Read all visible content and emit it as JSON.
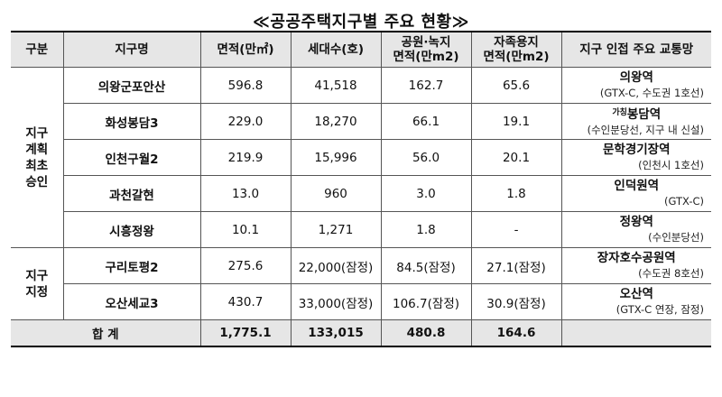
{
  "title": "≪공공주택지구별 주요 현황≫",
  "headers": {
    "group": "구분",
    "district": "지구명",
    "area": "면적(만㎡)",
    "households": "세대수(호)",
    "park_line1": "공원·녹지",
    "park_line2": "면적(만m2)",
    "self_line1": "자족용지",
    "self_line2": "면적(만m2)",
    "transit": "지구 인접 주요 교통망"
  },
  "groups": [
    {
      "label_lines": [
        "지구",
        "계획",
        "최초",
        "승인"
      ]
    },
    {
      "label_lines": [
        "지구",
        "지정"
      ]
    }
  ],
  "rows": [
    {
      "name": "의왕군포안산",
      "area": "596.8",
      "households": "41,518",
      "park": "162.7",
      "self": "65.6",
      "station_prefix": "",
      "station": "의왕역",
      "line": "(GTX-C, 수도권 1호선)"
    },
    {
      "name": "화성봉담3",
      "area": "229.0",
      "households": "18,270",
      "park": "66.1",
      "self": "19.1",
      "station_prefix": "가칭",
      "station": "봉담역",
      "line": "(수인분당선, 지구 내 신설)"
    },
    {
      "name": "인천구월2",
      "area": "219.9",
      "households": "15,996",
      "park": "56.0",
      "self": "20.1",
      "station_prefix": "",
      "station": "문학경기장역",
      "line": "(인천시 1호선)"
    },
    {
      "name": "과천갈현",
      "area": "13.0",
      "households": "960",
      "park": "3.0",
      "self": "1.8",
      "station_prefix": "",
      "station": "인덕원역",
      "line": "(GTX-C)"
    },
    {
      "name": "시흥정왕",
      "area": "10.1",
      "households": "1,271",
      "park": "1.8",
      "self": "-",
      "station_prefix": "",
      "station": "정왕역",
      "line": "(수인분당선)"
    },
    {
      "name": "구리토평2",
      "area": "275.6",
      "households": "22,000(잠정)",
      "park": "84.5(잠정)",
      "self": "27.1(잠정)",
      "station_prefix": "",
      "station": "장자호수공원역",
      "line": "(수도권 8호선)"
    },
    {
      "name": "오산세교3",
      "area": "430.7",
      "households": "33,000(잠정)",
      "park": "106.7(잠정)",
      "self": "30.9(잠정)",
      "station_prefix": "",
      "station": "오산역",
      "line": "(GTX-C 연장, 잠정)"
    }
  ],
  "total": {
    "label": "합 계",
    "area": "1,775.1",
    "households": "133,015",
    "park": "480.8",
    "self": "164.6"
  }
}
